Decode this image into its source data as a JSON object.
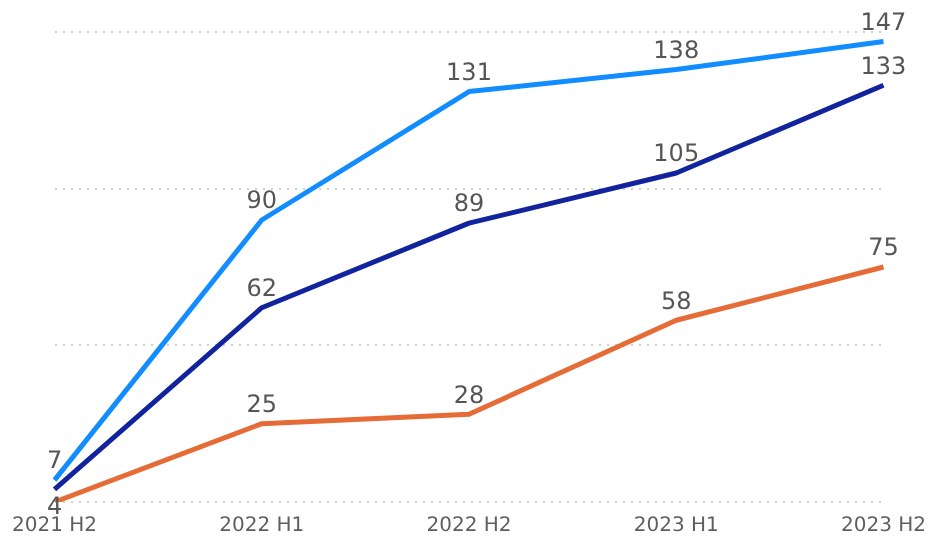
{
  "chart_data": {
    "type": "line",
    "categories": [
      "2021 H2",
      "2022 H1",
      "2022 H2",
      "2023 H1",
      "2023 H2"
    ],
    "series": [
      {
        "color": "#118dff",
        "values": [
          7,
          90,
          131,
          138,
          147
        ],
        "value_labels": [
          "7",
          "90",
          "131",
          "138",
          "147"
        ]
      },
      {
        "color": "#12239e",
        "values": [
          4,
          62,
          89,
          105,
          133
        ],
        "value_labels": [
          "4",
          "62",
          "89",
          "105",
          "133"
        ]
      },
      {
        "color": "#e66c37",
        "values": [
          0,
          25,
          28,
          58,
          75
        ],
        "value_labels": [
          null,
          "25",
          "28",
          "58",
          "75"
        ]
      }
    ],
    "ylim": [
      0,
      150
    ],
    "yticks": [
      {
        "value": 0,
        "label": null
      },
      {
        "value": 50,
        "label": null
      },
      {
        "value": 100,
        "label": null
      },
      {
        "value": 150,
        "label": null
      }
    ],
    "grid": "y",
    "tick_labels": "x",
    "legend": false,
    "marker": "none",
    "line_style": "solid"
  }
}
